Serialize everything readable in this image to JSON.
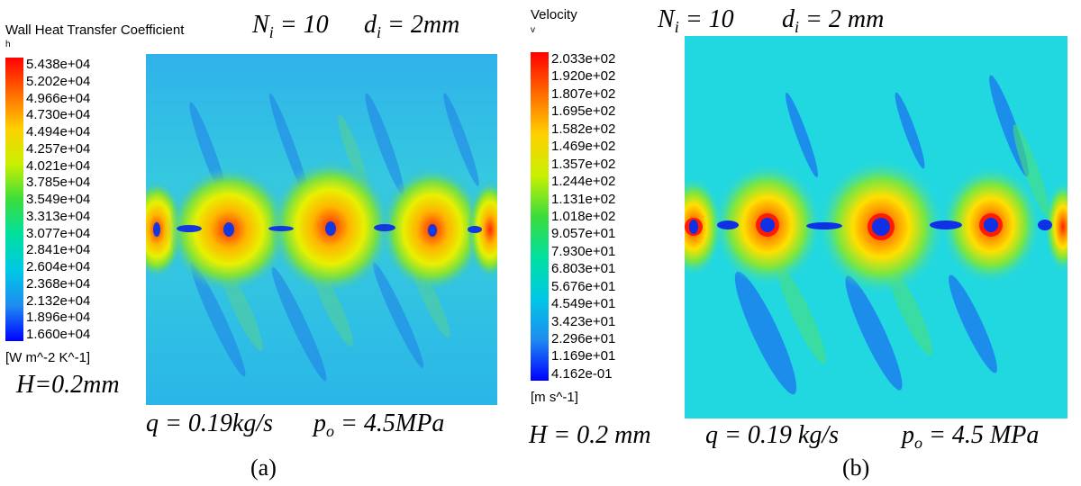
{
  "panel_a": {
    "legend": {
      "title": "Wall Heat Transfer Coefficient",
      "variable": "h",
      "ticks": [
        "5.438e+04",
        "5.202e+04",
        "4.966e+04",
        "4.730e+04",
        "4.494e+04",
        "4.257e+04",
        "4.021e+04",
        "3.785e+04",
        "3.549e+04",
        "3.313e+04",
        "3.077e+04",
        "2.841e+04",
        "2.604e+04",
        "2.368e+04",
        "2.132e+04",
        "1.896e+04",
        "1.660e+04"
      ],
      "unit": "[W m^-2 K^-1]"
    },
    "params": {
      "n_label": "N",
      "n_sub": "i",
      "n_value": " = 10",
      "d_label": "d",
      "d_sub": "i",
      "d_value": " = 2mm",
      "h_text": "H=0.2mm",
      "q_text": "q = 0.19kg/s",
      "p_label": "p",
      "p_sub": "o",
      "p_value": " = 4.5MPa"
    },
    "caption": "(a)"
  },
  "panel_b": {
    "legend": {
      "title": "Velocity",
      "variable": "v",
      "ticks": [
        "2.033e+02",
        "1.920e+02",
        "1.807e+02",
        "1.695e+02",
        "1.582e+02",
        "1.469e+02",
        "1.357e+02",
        "1.244e+02",
        "1.131e+02",
        "1.018e+02",
        "9.057e+01",
        "7.930e+01",
        "6.803e+01",
        "5.676e+01",
        "4.549e+01",
        "3.423e+01",
        "2.296e+01",
        "1.169e+01",
        "4.162e-01"
      ],
      "unit": "[m s^-1]"
    },
    "params": {
      "n_label": "N",
      "n_sub": "i",
      "n_value": " = 10",
      "d_label": "d",
      "d_sub": "i",
      "d_value": " = 2 mm",
      "h_text": "H = 0.2 mm",
      "q_text": "q = 0.19 kg/s",
      "p_label": "p",
      "p_sub": "o",
      "p_value": " = 4.5 MPa"
    },
    "caption": "(b)"
  },
  "colors": {
    "background_field": "#2fbfe6",
    "scale": [
      "#ff0000",
      "#ff6a00",
      "#ffd000",
      "#c8f000",
      "#3cdc3c",
      "#00e0a0",
      "#00c8e6",
      "#1e8cf0",
      "#0000ff"
    ]
  }
}
